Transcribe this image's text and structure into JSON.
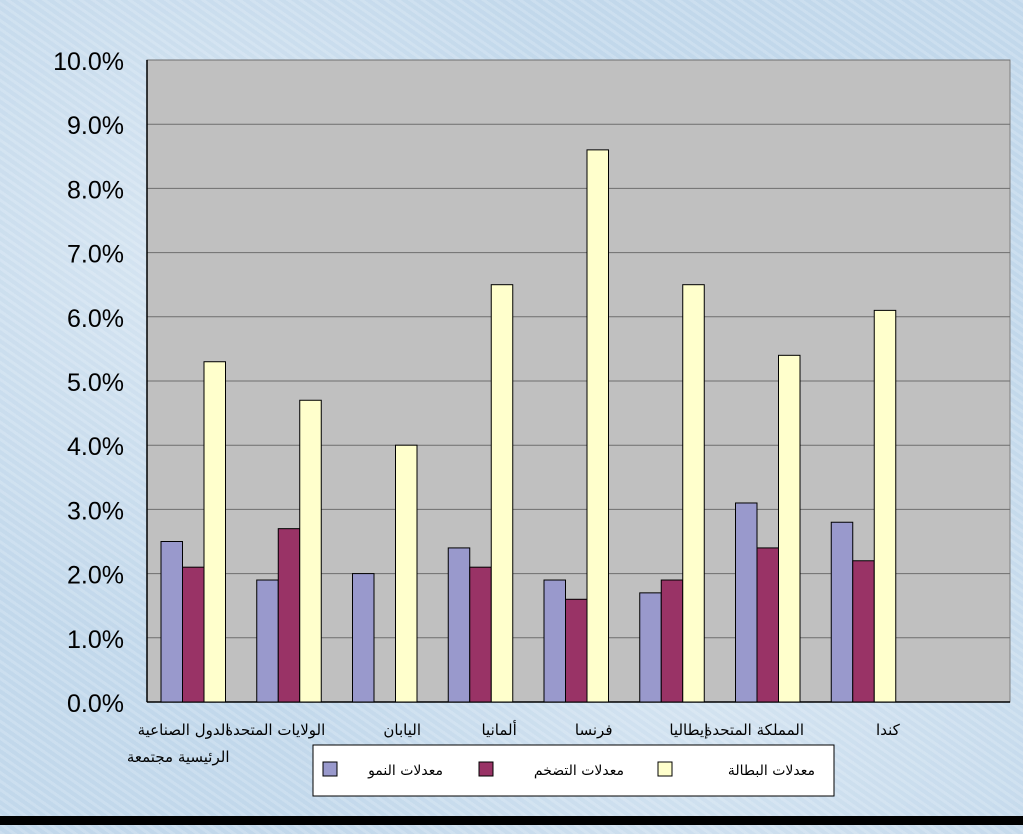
{
  "chart_data": {
    "type": "bar",
    "categories": [
      [
        "الدول الصناعية",
        "الرئيسية مجتمعة"
      ],
      [
        "الولايات المتحدة"
      ],
      [
        "اليابان"
      ],
      [
        "ألمانيا"
      ],
      [
        "فرنسا"
      ],
      [
        "إيطاليا"
      ],
      [
        "المملكة المتحدة"
      ],
      [
        "كندا"
      ]
    ],
    "series": [
      {
        "name": "معدلات النمو",
        "color": "#9999cc",
        "values": [
          2.5,
          1.9,
          2.0,
          2.4,
          1.9,
          1.7,
          3.1,
          2.8
        ]
      },
      {
        "name": "معدلات التضخم",
        "color": "#993366",
        "values": [
          2.1,
          2.7,
          null,
          2.1,
          1.6,
          1.9,
          2.4,
          2.2
        ]
      },
      {
        "name": "معدلات البطالة",
        "color": "#ffffcc",
        "values": [
          5.3,
          4.7,
          4.0,
          6.5,
          8.6,
          6.5,
          5.4,
          6.1
        ]
      }
    ],
    "ylim": [
      0,
      10
    ],
    "yticks": [
      "0.0%",
      "1.0%",
      "2.0%",
      "3.0%",
      "4.0%",
      "5.0%",
      "6.0%",
      "7.0%",
      "8.0%",
      "9.0%",
      "10.0%"
    ],
    "grid": true,
    "legend_position": "bottom",
    "plot_background": "#c0c0c0",
    "title": "",
    "xlabel": "",
    "ylabel": ""
  }
}
